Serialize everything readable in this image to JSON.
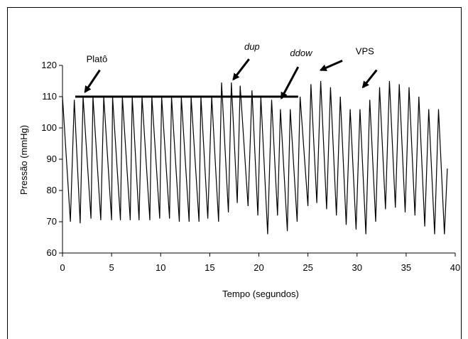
{
  "chart_data": {
    "type": "line",
    "title": "",
    "xlabel": "Tempo (segundos)",
    "ylabel": "Pressão (mmHg)",
    "xlim": [
      0,
      40
    ],
    "ylim": [
      60,
      120
    ],
    "x_ticks": [
      0,
      5,
      10,
      15,
      20,
      25,
      30,
      35,
      40
    ],
    "y_ticks": [
      60,
      70,
      80,
      90,
      100,
      110,
      120
    ],
    "grid": false,
    "legend": "none",
    "series": [
      {
        "color": "#000000",
        "points": [
          [
            0,
            110
          ],
          [
            0.8,
            70
          ],
          [
            1.2,
            109
          ],
          [
            1.8,
            69.5
          ],
          [
            2.1,
            110
          ],
          [
            2.9,
            71
          ],
          [
            3.1,
            110
          ],
          [
            3.9,
            70.5
          ],
          [
            4.2,
            110
          ],
          [
            5.0,
            70.5
          ],
          [
            5.1,
            110
          ],
          [
            5.9,
            70.5
          ],
          [
            6.1,
            110
          ],
          [
            6.9,
            70.5
          ],
          [
            7.1,
            110
          ],
          [
            7.8,
            70.5
          ],
          [
            8.1,
            110
          ],
          [
            8.9,
            70.5
          ],
          [
            9.1,
            110
          ],
          [
            9.9,
            71
          ],
          [
            10.1,
            110
          ],
          [
            10.9,
            71
          ],
          [
            11.1,
            110
          ],
          [
            11.9,
            70
          ],
          [
            12.1,
            110
          ],
          [
            12.9,
            70
          ],
          [
            13.1,
            110
          ],
          [
            13.9,
            70
          ],
          [
            14.1,
            110
          ],
          [
            14.8,
            71
          ],
          [
            15.2,
            110
          ],
          [
            15.9,
            70
          ],
          [
            16.2,
            114.5
          ],
          [
            16.9,
            73
          ],
          [
            17.2,
            114.5
          ],
          [
            17.8,
            76
          ],
          [
            18.1,
            113.5
          ],
          [
            18.9,
            75
          ],
          [
            19.3,
            112
          ],
          [
            19.9,
            72
          ],
          [
            20.2,
            110
          ],
          [
            20.9,
            66
          ],
          [
            21.3,
            109
          ],
          [
            21.9,
            72
          ],
          [
            22.2,
            106
          ],
          [
            22.9,
            67
          ],
          [
            23.2,
            106
          ],
          [
            23.9,
            70
          ],
          [
            24.2,
            110
          ],
          [
            25.0,
            75
          ],
          [
            25.3,
            114
          ],
          [
            25.9,
            76
          ],
          [
            26.3,
            115
          ],
          [
            26.9,
            74
          ],
          [
            27.3,
            113
          ],
          [
            27.9,
            72
          ],
          [
            28.3,
            110
          ],
          [
            28.9,
            69
          ],
          [
            29.3,
            106
          ],
          [
            29.9,
            67.5
          ],
          [
            30.3,
            106
          ],
          [
            30.9,
            66
          ],
          [
            31.3,
            109
          ],
          [
            31.9,
            70
          ],
          [
            32.3,
            113
          ],
          [
            32.9,
            74
          ],
          [
            33.3,
            115
          ],
          [
            33.9,
            74.5
          ],
          [
            34.3,
            114
          ],
          [
            34.9,
            73
          ],
          [
            35.3,
            113
          ],
          [
            35.9,
            72
          ],
          [
            36.3,
            110
          ],
          [
            36.9,
            68.5
          ],
          [
            37.3,
            106
          ],
          [
            37.9,
            66
          ],
          [
            38.3,
            106
          ],
          [
            38.9,
            66
          ],
          [
            39.2,
            87
          ]
        ]
      }
    ],
    "plateau_line": {
      "x": [
        1.3,
        24.0
      ],
      "y": 110
    },
    "annotations": [
      {
        "text": "Platô",
        "italic": false,
        "text_at": [
          3.5,
          121
        ],
        "arrow_from": [
          3.8,
          118.5
        ],
        "arrow_to": [
          2.3,
          111.5
        ]
      },
      {
        "text": "dup",
        "italic": true,
        "text_at": [
          19.3,
          125
        ],
        "arrow_from": [
          19.0,
          122
        ],
        "arrow_to": [
          17.4,
          115.5
        ]
      },
      {
        "text": "ddow",
        "italic": true,
        "text_at": [
          24.3,
          123
        ],
        "arrow_from": [
          24.0,
          119.5
        ],
        "arrow_to": [
          22.3,
          109.5
        ]
      },
      {
        "text": "VPS",
        "italic": false,
        "text_at": [
          30.8,
          123.5
        ],
        "arrow_from": [
          28.5,
          121.5
        ],
        "arrow_to": [
          26.3,
          118.5
        ]
      },
      {
        "text": "",
        "italic": false,
        "text_at": [
          0,
          0
        ],
        "arrow_from": [
          32.0,
          118.5
        ],
        "arrow_to": [
          30.6,
          113
        ]
      }
    ]
  }
}
